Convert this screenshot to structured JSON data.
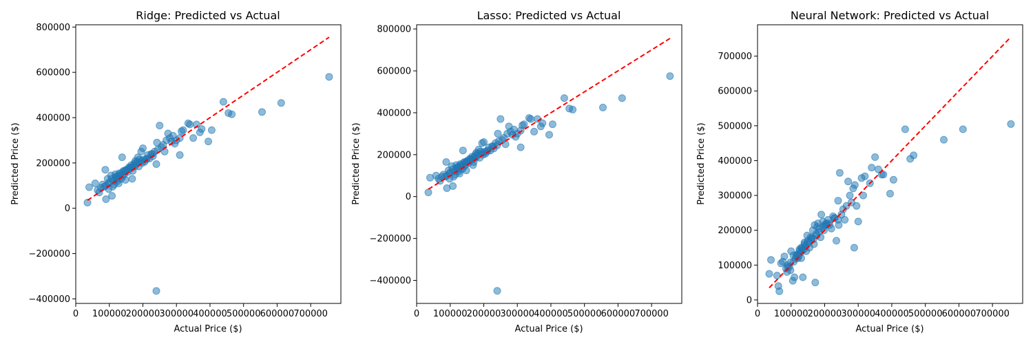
{
  "colors": {
    "points": "#1f77b4",
    "reference_line": "#ff0000",
    "axes": "#000000"
  },
  "chart_data": [
    {
      "type": "scatter",
      "title": "Ridge: Predicted vs Actual",
      "xlabel": "Actual Price ($)",
      "ylabel": "Predicted Price ($)",
      "xlim": [
        0,
        790000
      ],
      "ylim": [
        -420000,
        810000
      ],
      "xticks": [
        0,
        100000,
        200000,
        300000,
        400000,
        500000,
        600000,
        700000
      ],
      "yticks": [
        -400000,
        -200000,
        0,
        200000,
        400000,
        600000,
        800000
      ],
      "reference_line": {
        "x": [
          34900,
          755000
        ],
        "y": [
          34900,
          755000
        ],
        "style": "dashed"
      },
      "points": {
        "x": [
          34900,
          40000,
          58000,
          65000,
          70000,
          75000,
          80000,
          85000,
          88000,
          90000,
          95000,
          98000,
          100000,
          105000,
          108000,
          110000,
          115000,
          118000,
          120000,
          125000,
          128000,
          130000,
          135000,
          138000,
          140000,
          142000,
          145000,
          148000,
          150000,
          155000,
          158000,
          160000,
          165000,
          168000,
          170000,
          175000,
          178000,
          180000,
          185000,
          188000,
          190000,
          195000,
          198000,
          200000,
          205000,
          210000,
          215000,
          220000,
          225000,
          230000,
          235000,
          240000,
          242000,
          245000,
          250000,
          255000,
          260000,
          265000,
          270000,
          275000,
          280000,
          285000,
          290000,
          295000,
          300000,
          310000,
          315000,
          320000,
          335000,
          340000,
          350000,
          360000,
          370000,
          375000,
          395000,
          405000,
          440000,
          455000,
          465000,
          555000,
          612000,
          755000,
          240000,
          310000,
          90000,
          140000,
          125000,
          113000,
          98000,
          107000,
          132000,
          162000,
          172000,
          183000,
          197000,
          212000,
          228000,
          118000,
          148000,
          176000,
          203000,
          133000,
          122000,
          151000,
          167000
        ],
        "y": [
          25000,
          93000,
          110000,
          80000,
          70000,
          90000,
          105000,
          95000,
          170000,
          40000,
          130000,
          85000,
          115000,
          145000,
          55000,
          95000,
          105000,
          150000,
          140000,
          120000,
          110000,
          155000,
          130000,
          225000,
          140000,
          165000,
          150000,
          125000,
          170000,
          160000,
          180000,
          175000,
          190000,
          130000,
          165000,
          200000,
          210000,
          195000,
          225000,
          185000,
          215000,
          250000,
          200000,
          265000,
          205000,
          215000,
          235000,
          220000,
          240000,
          230000,
          250000,
          195000,
          290000,
          260000,
          365000,
          270000,
          280000,
          250000,
          300000,
          330000,
          310000,
          295000,
          320000,
          285000,
          300000,
          235000,
          340000,
          345000,
          375000,
          370000,
          310000,
          370000,
          335000,
          350000,
          295000,
          345000,
          470000,
          420000,
          415000,
          425000,
          465000,
          580000,
          -365000,
          310000,
          100000,
          160000,
          140000,
          120000,
          110000,
          130000,
          150000,
          180000,
          190000,
          205000,
          210000,
          220000,
          240000,
          135000,
          165000,
          185000,
          215000,
          145000,
          128000,
          168000,
          178000
        ]
      }
    },
    {
      "type": "scatter",
      "title": "Lasso: Predicted vs Actual",
      "xlabel": "Actual Price ($)",
      "ylabel": "Predicted Price ($)",
      "xlim": [
        0,
        790000
      ],
      "ylim": [
        -510000,
        820000
      ],
      "xticks": [
        0,
        100000,
        200000,
        300000,
        400000,
        500000,
        600000,
        700000
      ],
      "yticks": [
        -400000,
        -200000,
        0,
        200000,
        400000,
        600000,
        800000
      ],
      "reference_line": {
        "x": [
          34900,
          755000
        ],
        "y": [
          34900,
          755000
        ],
        "style": "dashed"
      },
      "points": {
        "x": [
          34900,
          40000,
          58000,
          65000,
          70000,
          75000,
          80000,
          85000,
          88000,
          90000,
          95000,
          98000,
          100000,
          105000,
          108000,
          110000,
          115000,
          118000,
          120000,
          125000,
          128000,
          130000,
          135000,
          138000,
          140000,
          142000,
          145000,
          148000,
          150000,
          155000,
          158000,
          160000,
          165000,
          168000,
          170000,
          175000,
          178000,
          180000,
          185000,
          188000,
          190000,
          195000,
          198000,
          200000,
          205000,
          210000,
          215000,
          220000,
          225000,
          230000,
          235000,
          240000,
          242000,
          245000,
          250000,
          255000,
          260000,
          265000,
          270000,
          275000,
          280000,
          285000,
          290000,
          295000,
          300000,
          310000,
          315000,
          320000,
          335000,
          340000,
          350000,
          360000,
          370000,
          375000,
          395000,
          405000,
          440000,
          455000,
          465000,
          555000,
          612000,
          755000,
          240000,
          310000,
          90000,
          140000,
          125000,
          113000,
          98000,
          107000,
          132000,
          162000,
          172000,
          183000,
          197000,
          212000,
          228000,
          118000,
          148000,
          176000,
          203000,
          133000,
          122000,
          151000,
          167000
        ],
        "y": [
          20000,
          90000,
          100000,
          85000,
          75000,
          95000,
          105000,
          95000,
          165000,
          40000,
          125000,
          85000,
          115000,
          145000,
          50000,
          95000,
          105000,
          150000,
          140000,
          120000,
          110000,
          155000,
          130000,
          220000,
          140000,
          165000,
          150000,
          125000,
          170000,
          160000,
          180000,
          175000,
          190000,
          150000,
          165000,
          200000,
          210000,
          195000,
          225000,
          185000,
          215000,
          255000,
          200000,
          260000,
          205000,
          215000,
          235000,
          220000,
          240000,
          230000,
          255000,
          245000,
          300000,
          265000,
          370000,
          270000,
          280000,
          250000,
          300000,
          335000,
          310000,
          295000,
          320000,
          285000,
          300000,
          235000,
          340000,
          345000,
          375000,
          370000,
          310000,
          370000,
          335000,
          350000,
          295000,
          345000,
          470000,
          420000,
          415000,
          425000,
          470000,
          575000,
          -450000,
          315000,
          100000,
          160000,
          140000,
          120000,
          110000,
          130000,
          150000,
          180000,
          190000,
          205000,
          210000,
          220000,
          240000,
          135000,
          165000,
          185000,
          215000,
          145000,
          128000,
          168000,
          178000
        ]
      }
    },
    {
      "type": "scatter",
      "title": "Neural Network: Predicted vs Actual",
      "xlabel": "Actual Price ($)",
      "ylabel": "Predicted Price ($)",
      "xlim": [
        0,
        790000
      ],
      "ylim": [
        -10000,
        790000
      ],
      "xticks": [
        0,
        100000,
        200000,
        300000,
        400000,
        500000,
        600000,
        700000
      ],
      "yticks": [
        0,
        100000,
        200000,
        300000,
        400000,
        500000,
        600000,
        700000
      ],
      "reference_line": {
        "x": [
          34900,
          755000
        ],
        "y": [
          34900,
          755000
        ],
        "style": "dashed"
      },
      "points": {
        "x": [
          34900,
          40000,
          58000,
          62000,
          65000,
          70000,
          75000,
          80000,
          85000,
          88000,
          90000,
          95000,
          98000,
          100000,
          105000,
          108000,
          110000,
          115000,
          118000,
          120000,
          125000,
          128000,
          130000,
          135000,
          138000,
          140000,
          142000,
          145000,
          148000,
          150000,
          155000,
          158000,
          160000,
          165000,
          168000,
          170000,
          175000,
          178000,
          180000,
          185000,
          188000,
          190000,
          195000,
          198000,
          200000,
          205000,
          210000,
          215000,
          220000,
          225000,
          230000,
          235000,
          240000,
          242000,
          245000,
          250000,
          255000,
          260000,
          265000,
          270000,
          275000,
          280000,
          285000,
          288000,
          290000,
          295000,
          300000,
          310000,
          315000,
          320000,
          335000,
          340000,
          350000,
          360000,
          370000,
          375000,
          395000,
          405000,
          440000,
          455000,
          465000,
          555000,
          612000,
          755000,
          172000,
          240000,
          130000,
          90000,
          140000,
          125000,
          113000,
          98000,
          107000,
          132000,
          162000,
          183000,
          197000,
          212000,
          228000,
          118000,
          148000,
          176000,
          203000,
          133000,
          122000,
          151000,
          167000
        ],
        "y": [
          75000,
          115000,
          70000,
          40000,
          25000,
          105000,
          110000,
          125000,
          90000,
          80000,
          100000,
          95000,
          85000,
          140000,
          55000,
          110000,
          65000,
          125000,
          130000,
          120000,
          145000,
          135000,
          150000,
          65000,
          145000,
          160000,
          155000,
          140000,
          185000,
          170000,
          150000,
          180000,
          175000,
          200000,
          160000,
          215000,
          190000,
          210000,
          220000,
          205000,
          180000,
          245000,
          225000,
          200000,
          215000,
          220000,
          230000,
          215000,
          205000,
          240000,
          235000,
          170000,
          285000,
          215000,
          365000,
          245000,
          260000,
          230000,
          270000,
          340000,
          300000,
          280000,
          320000,
          150000,
          330000,
          270000,
          225000,
          350000,
          300000,
          355000,
          335000,
          380000,
          410000,
          375000,
          360000,
          360000,
          305000,
          345000,
          490000,
          405000,
          415000,
          460000,
          490000,
          505000,
          50000,
          230000,
          120000,
          95000,
          165000,
          140000,
          118000,
          108000,
          128000,
          148000,
          178000,
          195000,
          210000,
          220000,
          235000,
          130000,
          160000,
          185000,
          215000,
          142000,
          125000,
          165000,
          175000
        ]
      }
    }
  ]
}
